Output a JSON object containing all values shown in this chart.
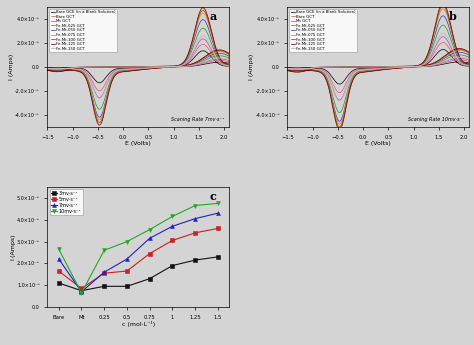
{
  "legend_labels_ab": [
    "Bare GCE (in a Blank Solution)",
    "Bare GCT",
    "Mt GCT",
    "Fe-Mt-025 GCT",
    "Fe-Mt-050 GCT",
    "Fe-Mt-075 GCT",
    "Fe-Mt-100 GCT",
    "Fe-Mt-125 GCT",
    "Fe-Mt-150 GCT"
  ],
  "line_colors_ab": [
    "#111111",
    "#e06080",
    "#c050c0",
    "#30a030",
    "#4040c0",
    "#d09020",
    "#905010",
    "#880000",
    "#c8b8b8"
  ],
  "xlabel_ab": "E (Volts)",
  "ylabel_ab": "I (Amps)",
  "xlim_ab": [
    -1.5,
    2.1
  ],
  "ylim_ab": [
    -5e-08,
    5e-08
  ],
  "yticks_ab": [
    -4e-08,
    -2e-08,
    0.0,
    2e-08,
    4e-08
  ],
  "ytick_labels_ab": [
    "-4.0×10⁻⁸",
    "-2.0×10⁻⁸",
    "0.0",
    "2.0×10⁻⁸",
    "4.0×10⁻⁸"
  ],
  "xticks_ab": [
    -1.5,
    -1.0,
    -0.5,
    0.0,
    0.5,
    1.0,
    1.5,
    2.0
  ],
  "scan_rate_a": "Scaning Rate 7mv·s⁻¹",
  "scan_rate_b": "Scaning Rate 10mv·s⁻¹",
  "legend_labels_c": [
    "3mv·s⁻¹",
    "5mv·s⁻¹",
    "7mv·s⁻¹",
    "10mv·s⁻¹"
  ],
  "line_colors_c": [
    "#111111",
    "#cc2020",
    "#2020cc",
    "#20aa20"
  ],
  "markers_c": [
    "s",
    "s",
    "^",
    "v"
  ],
  "xlabel_c": "c (mol·L⁻¹)",
  "ylabel_c": "I (Amps)",
  "xlim_c": [
    -0.5,
    7.5
  ],
  "ylim_c": [
    0,
    5.5e-08
  ],
  "yticks_c": [
    0,
    1e-08,
    2e-08,
    3e-08,
    4e-08,
    5e-08
  ],
  "ytick_labels_c": [
    "0.0",
    "1.0×10⁻⁸",
    "2.0×10⁻⁸",
    "3.0×10⁻⁸",
    "4.0×10⁻⁸",
    "5.0×10⁻⁸"
  ],
  "xtick_labels_c": [
    "Bare",
    "Mt",
    "0.25",
    "0.5",
    "0.75",
    "1",
    "1.25",
    "1.5"
  ],
  "c_data": {
    "3mv": [
      1.1e-08,
      7.5e-09,
      9.5e-09,
      9.5e-09,
      1.3e-08,
      1.9e-08,
      2.15e-08,
      2.3e-08
    ],
    "5mv": [
      1.65e-08,
      8.5e-09,
      1.55e-08,
      1.65e-08,
      2.45e-08,
      3.05e-08,
      3.4e-08,
      3.6e-08
    ],
    "7mv": [
      2.2e-08,
      7e-09,
      1.6e-08,
      2.2e-08,
      3.15e-08,
      3.7e-08,
      4.05e-08,
      4.3e-08
    ],
    "10mv": [
      2.65e-08,
      6.5e-09,
      2.6e-08,
      3e-08,
      3.55e-08,
      4.15e-08,
      4.65e-08,
      4.75e-08
    ]
  },
  "background_color": "#d4d4d4"
}
